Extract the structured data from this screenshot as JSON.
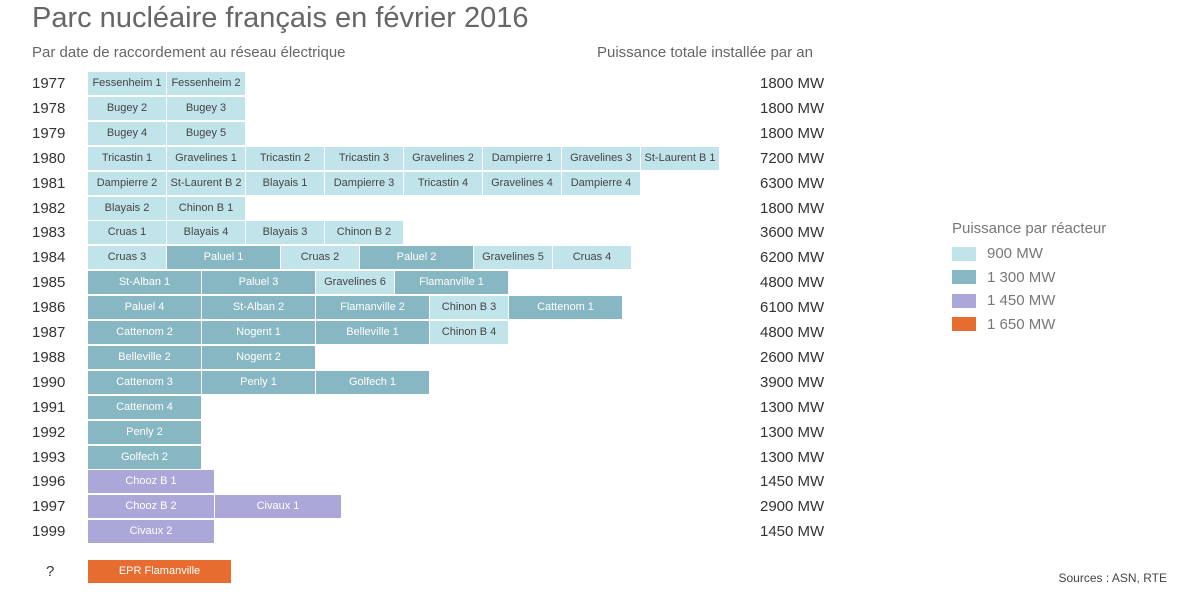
{
  "title": "Parc nucléaire français en février 2016",
  "subtitle_left": "Par date de raccordement au réseau électrique",
  "subtitle_right": "Puissance totale installée par an",
  "source": "Sources : ASN, RTE",
  "legend": {
    "title": "Puissance par réacteur",
    "items": [
      {
        "label": "900 MW",
        "mw": 900,
        "color": "#c0e4ea"
      },
      {
        "label": "1 300 MW",
        "mw": 1300,
        "color": "#86b7c3"
      },
      {
        "label": "1 450 MW",
        "mw": 1450,
        "color": "#aba7d8"
      },
      {
        "label": "1 650 MW",
        "mw": 1650,
        "color": "#e66c30"
      }
    ]
  },
  "chart_data": {
    "type": "bar",
    "rows": [
      {
        "year": "1977",
        "total": "1800 MW",
        "reactors": [
          [
            "Fessenheim 1",
            900
          ],
          [
            "Fessenheim 2",
            900
          ]
        ]
      },
      {
        "year": "1978",
        "total": "1800 MW",
        "reactors": [
          [
            "Bugey 2",
            900
          ],
          [
            "Bugey 3",
            900
          ]
        ]
      },
      {
        "year": "1979",
        "total": "1800 MW",
        "reactors": [
          [
            "Bugey 4",
            900
          ],
          [
            "Bugey 5",
            900
          ]
        ]
      },
      {
        "year": "1980",
        "total": "7200 MW",
        "reactors": [
          [
            "Tricastin 1",
            900
          ],
          [
            "Gravelines 1",
            900
          ],
          [
            "Tricastin 2",
            900
          ],
          [
            "Tricastin 3",
            900
          ],
          [
            "Gravelines 2",
            900
          ],
          [
            "Dampierre 1",
            900
          ],
          [
            "Gravelines 3",
            900
          ],
          [
            "St-Laurent B 1",
            900
          ]
        ]
      },
      {
        "year": "1981",
        "total": "6300 MW",
        "reactors": [
          [
            "Dampierre 2",
            900
          ],
          [
            "St-Laurent B 2",
            900
          ],
          [
            "Blayais 1",
            900
          ],
          [
            "Dampierre 3",
            900
          ],
          [
            "Tricastin 4",
            900
          ],
          [
            "Gravelines 4",
            900
          ],
          [
            "Dampierre 4",
            900
          ]
        ]
      },
      {
        "year": "1982",
        "total": "1800 MW",
        "reactors": [
          [
            "Blayais 2",
            900
          ],
          [
            "Chinon B 1",
            900
          ]
        ]
      },
      {
        "year": "1983",
        "total": "3600 MW",
        "reactors": [
          [
            "Cruas 1",
            900
          ],
          [
            "Blayais 4",
            900
          ],
          [
            "Blayais 3",
            900
          ],
          [
            "Chinon B 2",
            900
          ]
        ]
      },
      {
        "year": "1984",
        "total": "6200 MW",
        "reactors": [
          [
            "Cruas 3",
            900
          ],
          [
            "Paluel 1",
            1300
          ],
          [
            "Cruas 2",
            900
          ],
          [
            "Paluel 2",
            1300
          ],
          [
            "Gravelines 5",
            900
          ],
          [
            "Cruas 4",
            900
          ]
        ]
      },
      {
        "year": "1985",
        "total": "4800 MW",
        "reactors": [
          [
            "St-Alban 1",
            1300
          ],
          [
            "Paluel 3",
            1300
          ],
          [
            "Gravelines 6",
            900
          ],
          [
            "Flamanville 1",
            1300
          ]
        ]
      },
      {
        "year": "1986",
        "total": "6100 MW",
        "reactors": [
          [
            "Paluel 4",
            1300
          ],
          [
            "St-Alban 2",
            1300
          ],
          [
            "Flamanville 2",
            1300
          ],
          [
            "Chinon B 3",
            900
          ],
          [
            "Cattenom 1",
            1300
          ]
        ]
      },
      {
        "year": "1987",
        "total": "4800 MW",
        "reactors": [
          [
            "Cattenom 2",
            1300
          ],
          [
            "Nogent 1",
            1300
          ],
          [
            "Belleville 1",
            1300
          ],
          [
            "Chinon B 4",
            900
          ]
        ]
      },
      {
        "year": "1988",
        "total": "2600 MW",
        "reactors": [
          [
            "Belleville 2",
            1300
          ],
          [
            "Nogent 2",
            1300
          ]
        ]
      },
      {
        "year": "1990",
        "total": "3900 MW",
        "reactors": [
          [
            "Cattenom 3",
            1300
          ],
          [
            "Penly 1",
            1300
          ],
          [
            "Golfech 1",
            1300
          ]
        ]
      },
      {
        "year": "1991",
        "total": "1300 MW",
        "reactors": [
          [
            "Cattenom 4",
            1300
          ]
        ]
      },
      {
        "year": "1992",
        "total": "1300 MW",
        "reactors": [
          [
            "Penly 2",
            1300
          ]
        ]
      },
      {
        "year": "1993",
        "total": "1300 MW",
        "reactors": [
          [
            "Golfech 2",
            1300
          ]
        ]
      },
      {
        "year": "1996",
        "total": "1450 MW",
        "reactors": [
          [
            "Chooz B 1",
            1450
          ]
        ]
      },
      {
        "year": "1997",
        "total": "2900 MW",
        "reactors": [
          [
            "Chooz B 2",
            1450
          ],
          [
            "Civaux 1",
            1450
          ]
        ]
      },
      {
        "year": "1999",
        "total": "1450 MW",
        "reactors": [
          [
            "Civaux 2",
            1450
          ]
        ]
      },
      {
        "year": "?",
        "total": "",
        "reactors": [
          [
            "EPR Flamanville",
            1650
          ]
        ]
      }
    ]
  }
}
